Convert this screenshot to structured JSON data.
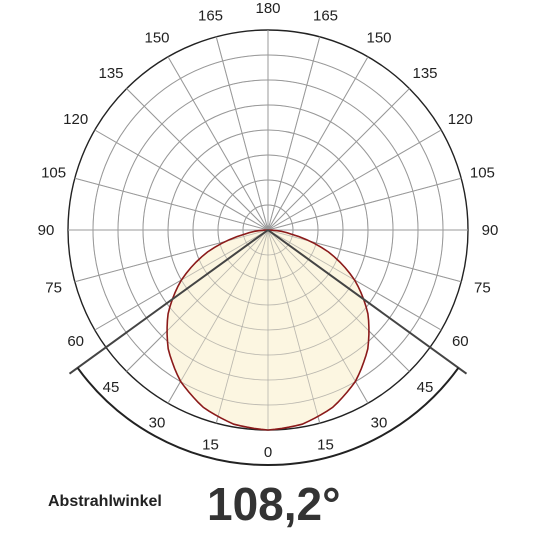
{
  "chart_data": {
    "type": "polar",
    "title": "",
    "angle_unit": "deg",
    "angle_ticks": [
      "0",
      "15",
      "30",
      "45",
      "60",
      "75",
      "90",
      "105",
      "120",
      "135",
      "150",
      "165",
      "180"
    ],
    "ring_count": 8,
    "grid": true,
    "series": [
      {
        "fill": "#fbf5dc",
        "stroke": "#8b1a1a",
        "r_max": 1.0,
        "angles_deg": [
          0,
          10,
          20,
          30,
          40,
          50,
          60,
          70,
          80,
          90
        ],
        "values": [
          1.0,
          0.986,
          0.944,
          0.874,
          0.776,
          0.652,
          0.5,
          0.322,
          0.118,
          0.0
        ]
      }
    ],
    "beam_angle_deg": 108.2
  },
  "beam_label": "Abstrahlwinkel",
  "beam_value": "108,2°",
  "colors": {
    "grid": "#999999",
    "outline": "#222222",
    "fill": "#fbf5dc",
    "curve": "#8b1a1a",
    "beam_lines": "#444444"
  }
}
